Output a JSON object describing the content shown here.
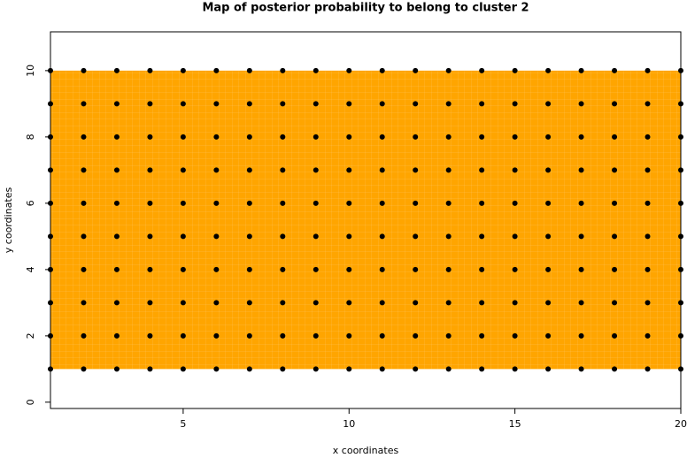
{
  "chart_data": {
    "type": "scatter",
    "title": "Map of posterior probability to belong to cluster  2",
    "x_label": "x coordinates",
    "y_label": "y coordinates",
    "fill_color": "#ffa500",
    "point_color": "#000000",
    "x": [
      1,
      2,
      3,
      4,
      5,
      6,
      7,
      8,
      9,
      10,
      11,
      12,
      13,
      14,
      15,
      16,
      17,
      18,
      19,
      20,
      1,
      2,
      3,
      4,
      5,
      6,
      7,
      8,
      9,
      10,
      11,
      12,
      13,
      14,
      15,
      16,
      17,
      18,
      19,
      20,
      1,
      2,
      3,
      4,
      5,
      6,
      7,
      8,
      9,
      10,
      11,
      12,
      13,
      14,
      15,
      16,
      17,
      18,
      19,
      20,
      1,
      2,
      3,
      4,
      5,
      6,
      7,
      8,
      9,
      10,
      11,
      12,
      13,
      14,
      15,
      16,
      17,
      18,
      19,
      20,
      1,
      2,
      3,
      4,
      5,
      6,
      7,
      8,
      9,
      10,
      11,
      12,
      13,
      14,
      15,
      16,
      17,
      18,
      19,
      20,
      1,
      2,
      3,
      4,
      5,
      6,
      7,
      8,
      9,
      10,
      11,
      12,
      13,
      14,
      15,
      16,
      17,
      18,
      19,
      20,
      1,
      2,
      3,
      4,
      5,
      6,
      7,
      8,
      9,
      10,
      11,
      12,
      13,
      14,
      15,
      16,
      17,
      18,
      19,
      20,
      1,
      2,
      3,
      4,
      5,
      6,
      7,
      8,
      9,
      10,
      11,
      12,
      13,
      14,
      15,
      16,
      17,
      18,
      19,
      20,
      1,
      2,
      3,
      4,
      5,
      6,
      7,
      8,
      9,
      10,
      11,
      12,
      13,
      14,
      15,
      16,
      17,
      18,
      19,
      20,
      1,
      2,
      3,
      4,
      5,
      6,
      7,
      8,
      9,
      10,
      11,
      12,
      13,
      14,
      15,
      16,
      17,
      18,
      19,
      20
    ],
    "values": [
      1,
      1,
      1,
      1,
      1,
      1,
      1,
      1,
      1,
      1,
      1,
      1,
      1,
      1,
      1,
      1,
      1,
      1,
      1,
      1,
      2,
      2,
      2,
      2,
      2,
      2,
      2,
      2,
      2,
      2,
      2,
      2,
      2,
      2,
      2,
      2,
      2,
      2,
      2,
      2,
      3,
      3,
      3,
      3,
      3,
      3,
      3,
      3,
      3,
      3,
      3,
      3,
      3,
      3,
      3,
      3,
      3,
      3,
      3,
      3,
      4,
      4,
      4,
      4,
      4,
      4,
      4,
      4,
      4,
      4,
      4,
      4,
      4,
      4,
      4,
      4,
      4,
      4,
      4,
      4,
      5,
      5,
      5,
      5,
      5,
      5,
      5,
      5,
      5,
      5,
      5,
      5,
      5,
      5,
      5,
      5,
      5,
      5,
      5,
      5,
      6,
      6,
      6,
      6,
      6,
      6,
      6,
      6,
      6,
      6,
      6,
      6,
      6,
      6,
      6,
      6,
      6,
      6,
      6,
      6,
      7,
      7,
      7,
      7,
      7,
      7,
      7,
      7,
      7,
      7,
      7,
      7,
      7,
      7,
      7,
      7,
      7,
      7,
      7,
      7,
      8,
      8,
      8,
      8,
      8,
      8,
      8,
      8,
      8,
      8,
      8,
      8,
      8,
      8,
      8,
      8,
      8,
      8,
      8,
      8,
      9,
      9,
      9,
      9,
      9,
      9,
      9,
      9,
      9,
      9,
      9,
      9,
      9,
      9,
      9,
      9,
      9,
      9,
      9,
      9,
      10,
      10,
      10,
      10,
      10,
      10,
      10,
      10,
      10,
      10,
      10,
      10,
      10,
      10,
      10,
      10,
      10,
      10,
      10,
      10
    ],
    "xlim": [
      1,
      20
    ],
    "ylim": [
      -0.19,
      11.17
    ],
    "xticks": [
      5,
      10,
      15,
      20
    ],
    "yticks": [
      0,
      2,
      4,
      6,
      8,
      10
    ]
  }
}
